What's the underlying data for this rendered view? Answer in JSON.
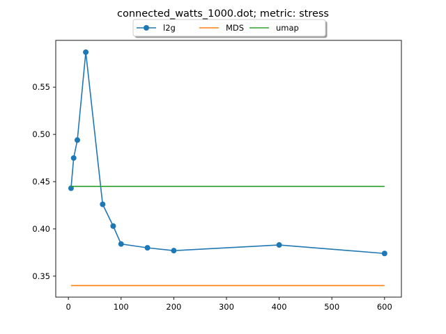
{
  "chart_data": {
    "type": "line",
    "title": "connected_watts_1000.dot; metric: stress",
    "xlabel": "",
    "ylabel": "",
    "xlim": [
      -24,
      632
    ],
    "ylim": [
      0.3278,
      0.5995
    ],
    "xticks": [
      0,
      100,
      200,
      300,
      400,
      500,
      600
    ],
    "yticks": [
      0.35,
      0.4,
      0.45,
      0.5,
      0.55
    ],
    "ytick_labels": [
      "0.35",
      "0.40",
      "0.45",
      "0.50",
      "0.55"
    ],
    "grid": false,
    "legend_position": "top-center",
    "series": [
      {
        "name": "l2g",
        "color": "#1f77b4",
        "marker": "circle",
        "x": [
          5,
          10,
          17,
          33,
          65,
          85,
          100,
          150,
          200,
          400,
          600
        ],
        "y": [
          0.443,
          0.475,
          0.494,
          0.587,
          0.426,
          0.403,
          0.384,
          0.38,
          0.377,
          0.383,
          0.374
        ]
      },
      {
        "name": "MDS",
        "color": "#ff7f0e",
        "marker": "none",
        "x": [
          5,
          600
        ],
        "y": [
          0.34,
          0.34
        ]
      },
      {
        "name": "umap",
        "color": "#2ca02c",
        "marker": "none",
        "x": [
          5,
          600
        ],
        "y": [
          0.445,
          0.445
        ]
      }
    ]
  }
}
